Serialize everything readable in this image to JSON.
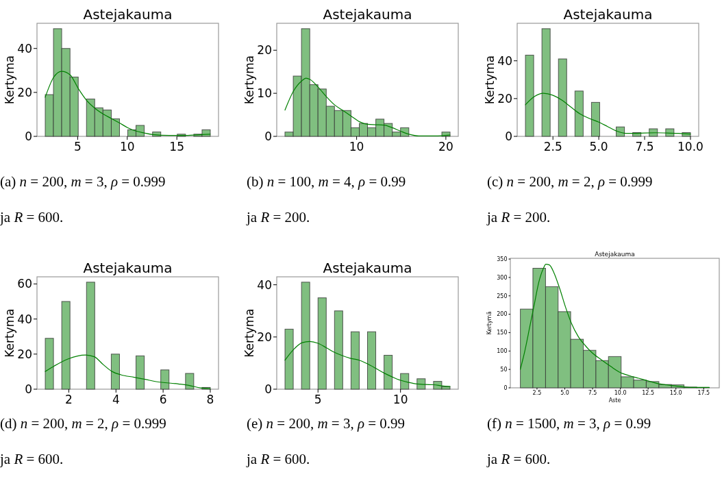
{
  "chart_data": [
    {
      "type": "histogram",
      "title": "Astejakauma",
      "ylabel": "Kertyma",
      "xlim": [
        0.9,
        19.2
      ],
      "ylim": [
        0,
        51.45
      ],
      "xticks": [
        5,
        10,
        15
      ],
      "yticks": [
        0,
        20,
        40
      ],
      "series": [
        {
          "type": "histogram",
          "color": "#80bf80",
          "bins": [
            1.73,
            2.56,
            3.39,
            4.23,
            5.06,
            5.89,
            6.72,
            7.55,
            8.39,
            9.22,
            10.05,
            10.88,
            11.71,
            12.55,
            13.38,
            14.21,
            15.04,
            15.87,
            16.71,
            17.54,
            18.37
          ],
          "values": [
            19,
            49,
            40,
            27,
            0,
            17,
            13,
            12,
            8,
            0,
            3,
            5,
            0,
            2,
            0,
            0,
            1,
            0,
            1,
            3
          ]
        },
        {
          "type": "line",
          "color": "#008000",
          "x": [
            1.73,
            2.58,
            3.39,
            4.24,
            5.07,
            5.88,
            6.73,
            7.56,
            8.41,
            9.22,
            10.02,
            10.88,
            11.73,
            12.56,
            14.24,
            15.88,
            17.56,
            18.36
          ],
          "values": [
            17.8,
            26.9,
            29.6,
            28.0,
            21.7,
            16.5,
            12.8,
            10.2,
            8.1,
            6.1,
            4.0,
            2.4,
            1.5,
            0.8,
            0.4,
            0.4,
            0.8,
            1.0
          ]
        }
      ],
      "annotations": [
        "(a) n = 200, m = 3, ρ = 0.999",
        "ja R = 600."
      ]
    },
    {
      "type": "histogram",
      "title": "Astejakauma",
      "ylabel": "Kertyma",
      "xlim": [
        1.05,
        21.39
      ],
      "ylim": [
        0,
        26.25
      ],
      "xticks": [
        10,
        20
      ],
      "yticks": [
        0,
        10,
        20
      ],
      "series": [
        {
          "type": "histogram",
          "color": "#80bf80",
          "bins": [
            1.97,
            2.9,
            3.82,
            4.75,
            5.67,
            6.6,
            7.52,
            8.45,
            9.37,
            10.3,
            11.22,
            12.15,
            13.07,
            14.0,
            14.92,
            15.85,
            16.77,
            17.7,
            18.62,
            19.55,
            20.47
          ],
          "values": [
            1,
            14,
            25,
            12,
            11,
            7,
            6,
            6,
            2,
            3,
            2,
            4,
            3,
            1,
            2,
            0,
            0,
            0,
            0,
            1
          ]
        },
        {
          "type": "line",
          "color": "#008000",
          "x": [
            1.97,
            2.92,
            3.86,
            4.32,
            4.78,
            5.7,
            6.62,
            7.54,
            8.47,
            9.39,
            10.31,
            11.23,
            12.16,
            13.08,
            14.0,
            14.93,
            15.86,
            16.98,
            18.77,
            20.46
          ],
          "values": [
            6.1,
            10.5,
            12.9,
            13.5,
            13.2,
            11.4,
            9.2,
            7.3,
            6.0,
            4.7,
            3.4,
            2.8,
            2.7,
            2.6,
            2.0,
            1.2,
            0.5,
            0.1,
            0.1,
            0.3
          ]
        }
      ],
      "annotations": [
        "(b) n = 100, m = 4, ρ = 0.99",
        "ja R = 200."
      ]
    },
    {
      "type": "histogram",
      "title": "Astejakauma",
      "ylabel": "Kertyma",
      "xlim": [
        0.55,
        10.45
      ],
      "ylim": [
        0,
        59.85
      ],
      "xticks": [
        2.5,
        {
          "value": 5,
          "label": "5.0"
        },
        7.5,
        {
          "value": 10,
          "label": "10.0"
        }
      ],
      "yticks": [
        0,
        20,
        40
      ],
      "series": [
        {
          "type": "histogram",
          "color": "#80bf80",
          "bins": [
            1,
            1.45,
            1.9,
            2.35,
            2.8,
            3.25,
            3.7,
            4.15,
            4.6,
            5.05,
            5.5,
            5.95,
            6.4,
            6.85,
            7.3,
            7.75,
            8.2,
            8.65,
            9.1,
            9.55,
            10
          ],
          "values": [
            43,
            0,
            57,
            0,
            41,
            0,
            24,
            0,
            18,
            0,
            0,
            5,
            0,
            2,
            0,
            4,
            0,
            4,
            0,
            2
          ]
        },
        {
          "type": "line",
          "color": "#008000",
          "x": [
            1,
            1.48,
            1.98,
            2.48,
            2.98,
            3.48,
            3.98,
            4.48,
            4.98,
            5.48,
            5.98,
            6.48,
            6.98,
            7.48,
            8.1,
            8.73,
            9.35,
            10
          ],
          "values": [
            16.7,
            21.0,
            22.8,
            21.8,
            19.2,
            15.5,
            11.9,
            9.5,
            7.6,
            5.2,
            2.8,
            1.6,
            1.6,
            1.8,
            1.9,
            1.8,
            1.6,
            1.2
          ]
        }
      ],
      "annotations": [
        "(c) n = 200, m = 2, ρ = 0.999",
        "ja R = 200."
      ]
    },
    {
      "type": "histogram",
      "title": "Astejakauma",
      "ylabel": "Kertyma",
      "xlim": [
        0.65,
        8.35
      ],
      "ylim": [
        0,
        64.05
      ],
      "xticks": [
        2,
        4,
        6,
        8
      ],
      "yticks": [
        0,
        20,
        40,
        60
      ],
      "series": [
        {
          "type": "histogram",
          "color": "#80bf80",
          "bins": [
            1,
            1.35,
            1.7,
            2.05,
            2.4,
            2.75,
            3.1,
            3.45,
            3.8,
            4.15,
            4.5,
            4.85,
            5.2,
            5.55,
            5.9,
            6.25,
            6.6,
            6.95,
            7.3,
            7.65,
            8
          ],
          "values": [
            29,
            0,
            50,
            0,
            0,
            61,
            0,
            0,
            20,
            0,
            0,
            19,
            0,
            0,
            11,
            0,
            0,
            9,
            0,
            1
          ]
        },
        {
          "type": "line",
          "color": "#008000",
          "x": [
            1,
            1.39,
            1.96,
            2.71,
            3.08,
            3.46,
            3.83,
            4.21,
            4.77,
            5.24,
            5.71,
            6.65,
            7.12,
            7.59,
            8
          ],
          "values": [
            10.1,
            13.3,
            17.2,
            19.5,
            18.5,
            14.0,
            10.1,
            8.2,
            6.8,
            5.6,
            4.3,
            3.0,
            2.1,
            0.7,
            0.3
          ]
        }
      ],
      "annotations": [
        "(d) n = 200, m = 2, ρ = 0.999",
        "ja R = 600."
      ]
    },
    {
      "type": "histogram",
      "title": "Astejakauma",
      "ylabel": "Kertyma",
      "xlim": [
        2.5,
        13.5
      ],
      "ylim": [
        0,
        43.05
      ],
      "xticks": [
        5,
        10
      ],
      "yticks": [
        0,
        20,
        40
      ],
      "series": [
        {
          "type": "histogram",
          "color": "#80bf80",
          "bins": [
            3,
            3.5,
            4,
            4.5,
            5,
            5.5,
            6,
            6.5,
            7,
            7.5,
            8,
            8.5,
            9,
            9.5,
            10,
            10.5,
            11,
            11.5,
            12,
            12.5,
            13
          ],
          "values": [
            23,
            0,
            41,
            0,
            35,
            0,
            30,
            0,
            22,
            0,
            22,
            0,
            13,
            0,
            6,
            0,
            4,
            0,
            3,
            1
          ]
        },
        {
          "type": "line",
          "color": "#008000",
          "x": [
            3,
            3.49,
            4.04,
            4.5,
            5,
            5.5,
            6,
            6.5,
            7,
            7.5,
            8,
            8.5,
            9,
            9.5,
            10,
            10.5,
            11,
            11.5,
            12,
            12.5,
            13
          ],
          "values": [
            11.1,
            15.0,
            17.8,
            18.3,
            17.6,
            15.9,
            14.1,
            12.8,
            11.8,
            11.1,
            9.7,
            8.0,
            6.2,
            4.7,
            3.4,
            2.6,
            2.0,
            1.8,
            1.7,
            1.3,
            1.0
          ]
        }
      ],
      "annotations": [
        "(e) n = 200, m = 3, ρ = 0.99",
        "ja R = 600."
      ]
    },
    {
      "type": "histogram",
      "title": "Astejakauma",
      "xlabel": "Aste",
      "ylabel": "Kertymä",
      "xlim": [
        0.1,
        18.9
      ],
      "ylim": [
        0,
        352
      ],
      "xticks": [
        2.5,
        {
          "value": 5,
          "label": "5.0"
        },
        7.5,
        {
          "value": 10,
          "label": "10.0"
        },
        12.5,
        {
          "value": 15,
          "label": "15.0"
        },
        17.5
      ],
      "yticks": [
        0,
        50,
        100,
        150,
        200,
        250,
        300,
        350
      ],
      "series": [
        {
          "type": "histogram",
          "color": "#80bf80",
          "bins": [
            1,
            2.13,
            3.27,
            4.4,
            5.53,
            6.67,
            7.8,
            8.93,
            10.07,
            11.2,
            12.33,
            13.47,
            14.6,
            15.73,
            16.87,
            18
          ],
          "values": [
            214,
            325,
            275,
            207,
            132,
            102,
            74,
            85,
            30,
            21,
            17,
            9,
            8,
            2,
            1
          ]
        },
        {
          "type": "line",
          "color": "#008000",
          "x": [
            1,
            1.41,
            1.83,
            2.25,
            2.67,
            3.08,
            3.29,
            3.61,
            4.02,
            4.55,
            5.07,
            5.59,
            6.22,
            6.84,
            7.47,
            8.3,
            9.14,
            9.97,
            10.81,
            11.64,
            12.48,
            13.31,
            14.15,
            14.98,
            15.82,
            16.65,
            18
          ],
          "values": [
            50,
            101,
            163,
            226,
            288,
            325,
            336,
            334,
            313,
            269,
            219,
            176,
            139,
            115,
            95,
            76,
            58,
            42,
            33,
            26,
            19,
            12,
            8,
            5,
            2,
            1,
            1
          ]
        }
      ],
      "annotations": [
        "(f) n = 1500, m = 3, ρ = 0.99",
        "ja R = 600."
      ]
    }
  ]
}
